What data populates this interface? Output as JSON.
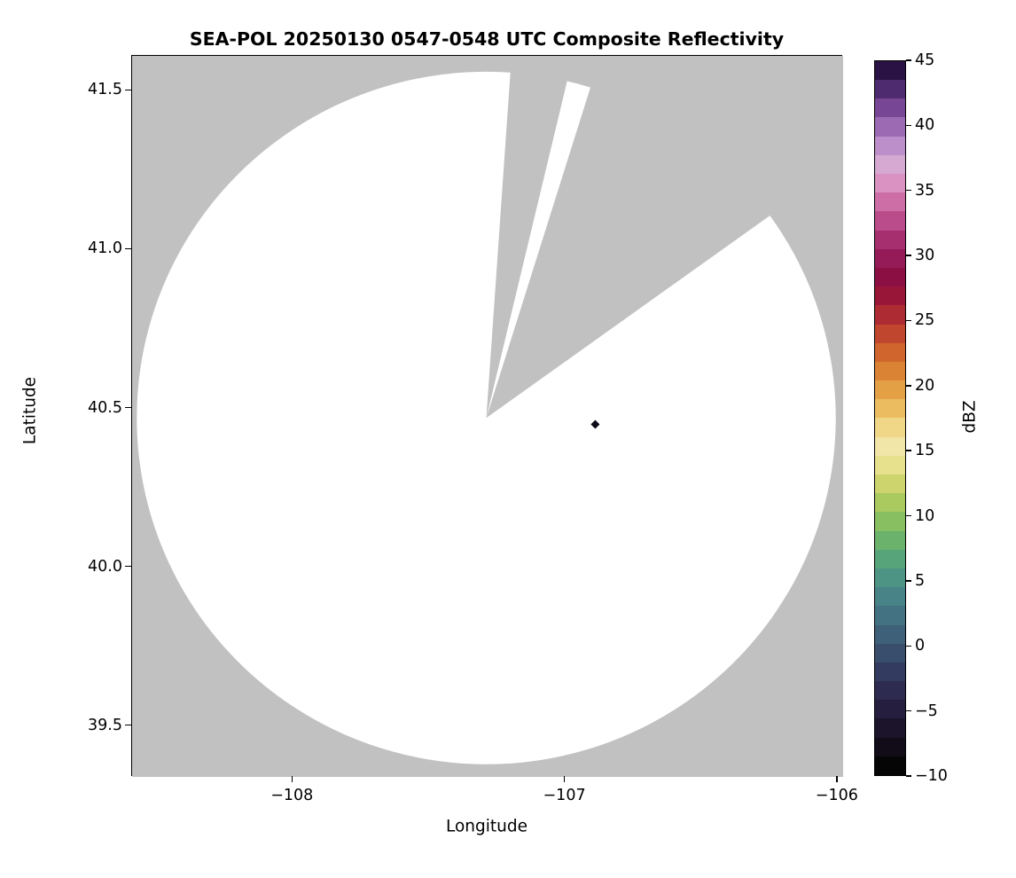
{
  "figure": {
    "title": "SEA-POL 20250130 0547-0548 UTC Composite Reflectivity",
    "xlabel": "Longitude",
    "ylabel": "Latitude",
    "colorbar_label": "dBZ",
    "background_color": "#ffffff",
    "no_data_color": "#c1c1c1",
    "scan_area_color": "#ffffff"
  },
  "axes": {
    "x_ticks": [
      {
        "label": "−108",
        "value": -108
      },
      {
        "label": "−107",
        "value": -107
      },
      {
        "label": "−106",
        "value": -106
      }
    ],
    "y_ticks": [
      {
        "label": "41.5",
        "value": 41.5
      },
      {
        "label": "41.0",
        "value": 41.0
      },
      {
        "label": "40.5",
        "value": 40.5
      },
      {
        "label": "40.0",
        "value": 40.0
      },
      {
        "label": "39.5",
        "value": 39.5
      }
    ],
    "colorbar_ticks": [
      {
        "label": "45",
        "value": 45
      },
      {
        "label": "40",
        "value": 40
      },
      {
        "label": "35",
        "value": 35
      },
      {
        "label": "30",
        "value": 30
      },
      {
        "label": "25",
        "value": 25
      },
      {
        "label": "20",
        "value": 20
      },
      {
        "label": "15",
        "value": 15
      },
      {
        "label": "10",
        "value": 10
      },
      {
        "label": "5",
        "value": 5
      },
      {
        "label": "0",
        "value": 0
      },
      {
        "label": "−5",
        "value": -5
      },
      {
        "label": "−10",
        "value": -10
      }
    ]
  },
  "chart_data": {
    "type": "heatmap",
    "title": "SEA-POL 20250130 0547-0548 UTC Composite Reflectivity",
    "xlabel": "Longitude",
    "ylabel": "Latitude",
    "xlim": [
      -108.59,
      -105.98
    ],
    "ylim": [
      39.34,
      41.61
    ],
    "grid": false,
    "colorbar": {
      "label": "dBZ",
      "min": -10,
      "max": 45,
      "tick_step": 5,
      "orientation": "vertical",
      "position": "right"
    },
    "radar_coverage": {
      "description": "White circular radar scan area drawn over gray no-data background; two gray blocked wedge sectors extend from radar center toward north/northeast",
      "center_lon": -107.29,
      "center_lat": 40.47,
      "radius_lon_deg": 1.283,
      "radius_lat_deg": 1.09,
      "blocked_sector_azimuths_deg": [
        [
          4,
          13.5
        ],
        [
          17.5,
          54.5
        ]
      ]
    },
    "echoes": [
      {
        "lon": -106.89,
        "lat": 40.45,
        "shape": "diamond",
        "color": "#0d0a18",
        "approx_dbz": 45,
        "note": "single small dark echo pixel"
      }
    ],
    "colormap_stops_bottom_to_top": [
      "#050505",
      "#110c18",
      "#1c142b",
      "#261e3e",
      "#2d2b50",
      "#333c60",
      "#394e6d",
      "#3e6079",
      "#437282",
      "#488387",
      "#4d9484",
      "#57a47b",
      "#6bb26d",
      "#87bf61",
      "#aaca60",
      "#cdd46e",
      "#e7e08d",
      "#f1e6a8",
      "#f0d787",
      "#ebbd60",
      "#e4a045",
      "#db8334",
      "#d0652d",
      "#c1462e",
      "#ad2b32",
      "#981637",
      "#8c0f44",
      "#951b58",
      "#a62f6f",
      "#bb4c8b",
      "#cd6ea7",
      "#d992c2",
      "#d6a9d3",
      "#bc8eca",
      "#9c69b3",
      "#774695",
      "#4e2a6e",
      "#2a1244"
    ]
  }
}
